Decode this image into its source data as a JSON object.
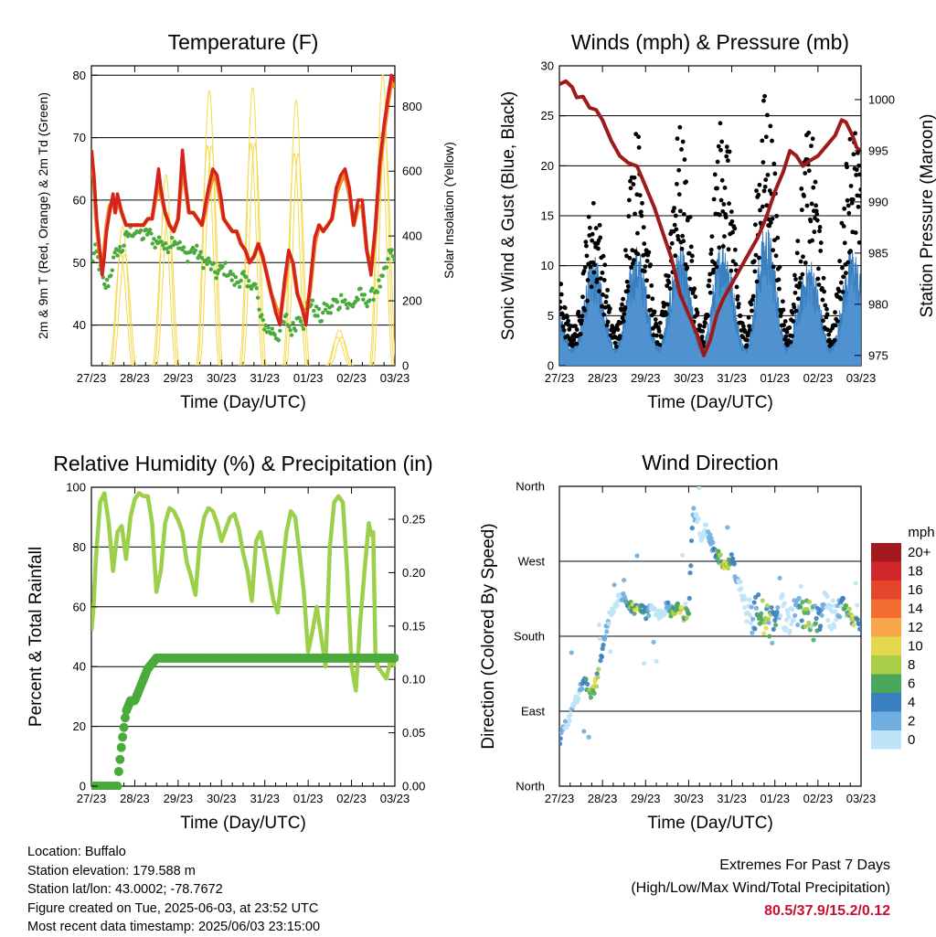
{
  "x_ticks": [
    "27/23",
    "28/23",
    "29/23",
    "30/23",
    "31/23",
    "01/23",
    "02/23",
    "03/23"
  ],
  "chart_data": [
    {
      "id": "temperature",
      "type": "line",
      "title": "Temperature (F)",
      "xlabel": "Time (Day/UTC)",
      "ylabel": "2m & 9m T (Red, Orange) & 2m Td (Green)",
      "ylabel_right": "Solar Insolation (Yellow)",
      "x_range_days": [
        0,
        7
      ],
      "ylim": [
        33.5,
        81.5
      ],
      "ylim_right": [
        0,
        925
      ],
      "yticks": [
        40,
        50,
        60,
        70,
        80
      ],
      "yticks_right": [
        0,
        200,
        400,
        600,
        800
      ],
      "grid_y": [
        40,
        50,
        60,
        70,
        80
      ],
      "series": [
        {
          "key": "t2m",
          "color": "#d4221c",
          "x": [
            0,
            0.06,
            0.12,
            0.18,
            0.25,
            0.3,
            0.35,
            0.42,
            0.5,
            0.55,
            0.6,
            0.7,
            0.8,
            0.9,
            1.0,
            1.1,
            1.2,
            1.3,
            1.4,
            1.5,
            1.55,
            1.6,
            1.7,
            1.8,
            1.9,
            2.0,
            2.05,
            2.1,
            2.15,
            2.25,
            2.35,
            2.45,
            2.55,
            2.62,
            2.7,
            2.8,
            2.9,
            3.0,
            3.05,
            3.15,
            3.25,
            3.35,
            3.45,
            3.55,
            3.65,
            3.75,
            3.85,
            3.95,
            4.05,
            4.15,
            4.25,
            4.35,
            4.45,
            4.55,
            4.65,
            4.75,
            4.85,
            4.95,
            5.05,
            5.15,
            5.25,
            5.35,
            5.45,
            5.55,
            5.65,
            5.75,
            5.85,
            5.95,
            6.05,
            6.15,
            6.25,
            6.35,
            6.45,
            6.55,
            6.65,
            6.75,
            6.85,
            6.92,
            7.0
          ],
          "y": [
            68,
            64,
            57,
            53,
            48,
            51,
            55,
            58,
            61,
            58,
            61,
            58,
            56,
            56,
            56,
            56,
            56,
            57,
            57,
            62,
            65,
            62,
            58,
            56,
            55,
            57,
            62,
            68,
            64,
            58,
            58,
            57,
            56,
            59,
            62,
            65,
            64,
            60,
            57,
            56,
            55,
            55,
            53,
            52,
            50,
            51,
            53,
            51,
            48,
            45,
            42,
            40,
            47,
            52,
            50,
            45,
            43,
            40,
            47,
            54,
            56,
            55,
            56,
            57,
            62,
            64,
            65,
            62,
            56,
            60,
            60,
            52,
            48,
            56,
            66,
            72,
            77,
            80,
            79
          ]
        },
        {
          "key": "t9m",
          "color": "#f08a24",
          "x": [
            0,
            0.06,
            0.12,
            0.18,
            0.25,
            0.3,
            0.35,
            0.42,
            0.5,
            0.55,
            0.6,
            0.7,
            0.8,
            0.9,
            1.0,
            1.1,
            1.2,
            1.3,
            1.4,
            1.5,
            1.55,
            1.6,
            1.7,
            1.8,
            1.9,
            2.0,
            2.05,
            2.1,
            2.15,
            2.25,
            2.35,
            2.45,
            2.55,
            2.62,
            2.7,
            2.8,
            2.9,
            3.0,
            3.05,
            3.15,
            3.25,
            3.35,
            3.45,
            3.55,
            3.65,
            3.75,
            3.85,
            3.95,
            4.05,
            4.15,
            4.25,
            4.35,
            4.45,
            4.55,
            4.65,
            4.75,
            4.85,
            4.95,
            5.05,
            5.15,
            5.25,
            5.35,
            5.45,
            5.55,
            5.65,
            5.75,
            5.85,
            5.95,
            6.05,
            6.15,
            6.25,
            6.35,
            6.45,
            6.55,
            6.65,
            6.75,
            6.85,
            6.92,
            7.0
          ],
          "y": [
            68,
            63,
            56,
            52,
            49,
            52,
            56,
            59,
            60,
            58,
            60,
            58,
            56,
            56,
            56,
            56,
            56,
            57,
            57,
            61,
            64,
            61,
            58,
            56,
            55,
            57,
            61,
            67,
            63,
            58,
            58,
            57,
            56,
            58,
            61,
            64,
            63,
            59,
            57,
            56,
            55,
            55,
            53,
            52,
            50,
            51,
            53,
            51,
            48,
            45,
            43,
            41,
            46,
            51,
            50,
            45,
            43,
            41,
            46,
            53,
            56,
            55,
            56,
            57,
            61,
            63,
            64,
            61,
            56,
            59,
            59,
            52,
            49,
            55,
            65,
            71,
            76,
            79,
            78
          ]
        },
        {
          "key": "td2m",
          "color": "#4aaa3c",
          "x": [
            0,
            0.1,
            0.2,
            0.3,
            0.4,
            0.5,
            0.6,
            0.7,
            0.8,
            0.9,
            1.0,
            1.1,
            1.2,
            1.3,
            1.4,
            1.5,
            1.6,
            1.7,
            1.8,
            1.9,
            2.0,
            2.1,
            2.2,
            2.3,
            2.4,
            2.5,
            2.6,
            2.7,
            2.8,
            2.9,
            3.0,
            3.1,
            3.2,
            3.3,
            3.4,
            3.5,
            3.6,
            3.7,
            3.8,
            3.9,
            4.0,
            4.1,
            4.2,
            4.3,
            4.4,
            4.5,
            4.6,
            4.7,
            4.8,
            4.9,
            5.0,
            5.1,
            5.2,
            5.3,
            5.4,
            5.5,
            5.6,
            5.7,
            5.8,
            5.9,
            6.0,
            6.1,
            6.2,
            6.3,
            6.4,
            6.5,
            6.6,
            6.7,
            6.8,
            6.9,
            7.0
          ],
          "y": [
            50,
            52,
            49,
            46,
            47,
            50,
            52,
            52,
            54,
            55,
            55,
            55,
            54,
            55,
            54,
            53,
            54,
            52,
            53,
            54,
            53,
            52,
            51,
            52,
            52,
            51,
            50,
            50,
            49,
            48,
            49,
            49,
            48,
            47,
            47,
            48,
            46,
            47,
            46,
            41,
            40,
            39,
            39,
            38,
            40,
            41,
            39,
            40,
            42,
            40,
            44,
            43,
            42,
            41,
            43,
            42,
            44,
            43,
            45,
            43,
            43,
            44,
            45,
            44,
            44,
            45,
            46,
            47,
            49,
            52,
            50
          ]
        }
      ],
      "solar": {
        "color": "#f6d94a",
        "peaks_w_m2": [
          430,
          590,
          850,
          860,
          820,
          110,
          900,
          880
        ]
      }
    },
    {
      "id": "winds",
      "type": "scatter",
      "title": "Winds (mph) & Pressure (mb)",
      "xlabel": "Time (Day/UTC)",
      "ylabel": "Sonic Wind & Gust (Blue, Black)",
      "ylabel_right": "Station Pressure (Maroon)",
      "x_range_days": [
        0,
        7
      ],
      "ylim": [
        0,
        30
      ],
      "ylim_right": [
        974,
        1003.3
      ],
      "yticks": [
        0,
        5,
        10,
        15,
        20,
        25,
        30
      ],
      "yticks_right": [
        975,
        980,
        985,
        990,
        995,
        1000
      ],
      "grid_y": [
        5,
        10,
        15,
        20,
        25,
        30
      ],
      "gust_peaks_mph": [
        12,
        17,
        24,
        24,
        26,
        28,
        24,
        25,
        25
      ],
      "wind_peaks_mph": [
        7,
        10,
        11,
        11,
        12,
        13,
        10,
        11,
        11
      ],
      "pressure": {
        "color": "#9e1b1b",
        "x": [
          0,
          0.15,
          0.3,
          0.4,
          0.55,
          0.7,
          0.85,
          1.0,
          1.2,
          1.4,
          1.6,
          1.8,
          2.0,
          2.2,
          2.4,
          2.6,
          2.8,
          3.0,
          3.2,
          3.35,
          3.5,
          3.65,
          3.8,
          4.0,
          4.2,
          4.4,
          4.6,
          4.8,
          5.0,
          5.2,
          5.35,
          5.5,
          5.65,
          5.8,
          6.0,
          6.2,
          6.4,
          6.55,
          6.65,
          6.8,
          6.9,
          7.0
        ],
        "y": [
          1001.5,
          1001.8,
          1001.2,
          1000.2,
          1000.3,
          999.2,
          999,
          998,
          996,
          994.5,
          993.8,
          993.5,
          991.5,
          989.5,
          987,
          984.5,
          981,
          979,
          977,
          975,
          976.5,
          979,
          980.5,
          982,
          983.5,
          985,
          986.5,
          988.5,
          991,
          993,
          995,
          994.5,
          993.5,
          994,
          994.5,
          995.5,
          996.5,
          998,
          997.8,
          996.5,
          995.3,
          995
        ]
      }
    },
    {
      "id": "humidity",
      "type": "line",
      "title": "Relative Humidity (%) & Precipitation (in)",
      "xlabel": "Time (Day/UTC)",
      "ylabel": "Percent & Total Rainfall",
      "x_range_days": [
        0,
        7
      ],
      "ylim": [
        0,
        100
      ],
      "ylim_right": [
        0,
        0.28
      ],
      "yticks": [
        0,
        20,
        40,
        60,
        80,
        100
      ],
      "yticks_right": [
        "0.00",
        "0.05",
        "0.10",
        "0.15",
        "0.20",
        "0.25"
      ],
      "grid_y": [
        20,
        40,
        60,
        80
      ],
      "series": [
        {
          "key": "rh",
          "color": "#9ccf4a",
          "x": [
            0,
            0.05,
            0.1,
            0.2,
            0.3,
            0.4,
            0.45,
            0.5,
            0.6,
            0.7,
            0.8,
            0.9,
            1.0,
            1.1,
            1.2,
            1.3,
            1.4,
            1.5,
            1.6,
            1.7,
            1.8,
            1.9,
            2.0,
            2.1,
            2.2,
            2.3,
            2.4,
            2.5,
            2.6,
            2.7,
            2.8,
            2.9,
            3.0,
            3.1,
            3.2,
            3.3,
            3.4,
            3.5,
            3.6,
            3.7,
            3.8,
            3.9,
            4.0,
            4.1,
            4.2,
            4.3,
            4.4,
            4.5,
            4.6,
            4.7,
            4.8,
            4.9,
            5.0,
            5.1,
            5.2,
            5.3,
            5.4,
            5.5,
            5.6,
            5.7,
            5.8,
            5.9,
            6.0,
            6.1,
            6.2,
            6.3,
            6.4,
            6.45,
            6.5,
            6.55,
            6.6,
            6.7,
            6.8,
            6.9,
            7.0
          ],
          "y": [
            52,
            60,
            75,
            95,
            98,
            88,
            80,
            72,
            85,
            87,
            76,
            90,
            96,
            98,
            97,
            97,
            88,
            65,
            72,
            88,
            93,
            92,
            89,
            85,
            75,
            70,
            64,
            82,
            90,
            93,
            92,
            88,
            82,
            86,
            90,
            91,
            86,
            78,
            72,
            62,
            82,
            85,
            78,
            70,
            62,
            58,
            72,
            85,
            92,
            90,
            78,
            65,
            45,
            52,
            60,
            50,
            40,
            80,
            95,
            97,
            95,
            72,
            40,
            32,
            55,
            72,
            88,
            84,
            85,
            45,
            40,
            38,
            36,
            42,
            40
          ]
        },
        {
          "key": "precip",
          "color": "#4aaa3c",
          "x": [
            0,
            0.5,
            0.6,
            0.62,
            0.7,
            0.8,
            0.9,
            1.0,
            1.1,
            1.2,
            1.3,
            1.4,
            1.5,
            7.0
          ],
          "y": [
            0,
            0,
            0,
            0.01,
            0.04,
            0.07,
            0.08,
            0.08,
            0.09,
            0.1,
            0.11,
            0.115,
            0.12,
            0.12
          ]
        }
      ]
    },
    {
      "id": "direction",
      "type": "scatter",
      "title": "Wind Direction",
      "xlabel": "Time (Day/UTC)",
      "ylabel": "Direction (Colored By Speed)",
      "x_range_days": [
        0,
        7
      ],
      "ylim": [
        0,
        360
      ],
      "yticks": [
        "North",
        "East",
        "South",
        "West",
        "North"
      ],
      "grid_y": [
        90,
        180,
        270
      ],
      "legend": {
        "title": "mph",
        "labels": [
          "20+",
          "18",
          "16",
          "14",
          "12",
          "10",
          "8",
          "6",
          "4",
          "2",
          "0"
        ],
        "colors": [
          "#a31a1e",
          "#d0282a",
          "#e3462b",
          "#f26d2f",
          "#f8a84a",
          "#e6d84e",
          "#a9cf48",
          "#4aa85c",
          "#3a7fc0",
          "#6eaee0",
          "#bfe3f7"
        ]
      },
      "track_x": [
        0,
        0.1,
        0.2,
        0.3,
        0.4,
        0.5,
        0.6,
        0.7,
        0.8,
        0.9,
        1.0,
        1.1,
        1.2,
        1.3,
        1.4,
        1.5,
        1.6,
        1.7,
        1.8,
        1.9,
        2.0,
        2.1,
        2.2,
        2.3,
        2.4,
        2.5,
        2.6,
        2.7,
        2.8,
        2.9,
        3.0,
        3.1,
        3.2,
        3.3,
        3.4,
        3.5,
        3.6,
        3.7,
        3.8,
        3.9,
        4.0,
        4.1,
        4.2,
        4.3,
        4.4,
        4.5,
        4.6,
        4.7,
        4.8,
        4.9,
        5.0,
        5.1,
        5.2,
        5.3,
        5.4,
        5.5,
        5.6,
        5.7,
        5.8,
        5.9,
        6.0,
        6.1,
        6.2,
        6.3,
        6.4,
        6.5,
        6.6,
        6.7,
        6.8,
        6.9,
        7.0
      ],
      "track_deg": [
        55,
        70,
        80,
        95,
        105,
        120,
        125,
        110,
        115,
        135,
        165,
        190,
        210,
        220,
        225,
        230,
        220,
        215,
        210,
        215,
        208,
        210,
        212,
        205,
        210,
        215,
        210,
        212,
        215,
        205,
        210,
        330,
        320,
        300,
        310,
        295,
        280,
        275,
        265,
        260,
        280,
        250,
        240,
        220,
        210,
        200,
        215,
        205,
        200,
        195,
        205,
        215,
        210,
        200,
        210,
        215,
        200,
        205,
        210,
        195,
        205,
        210,
        215,
        205,
        210,
        220,
        215,
        210,
        200,
        195,
        195
      ]
    }
  ],
  "info": {
    "location": "Location: Buffalo",
    "elevation": "Station elevation: 179.588 m",
    "latlon": "Station lat/lon: 43.0002; -78.7672",
    "created": "Figure created on Tue, 2025-06-03, at 23:52 UTC",
    "recent": "Most recent data timestamp: 2025/06/03 23:15:00"
  },
  "extremes": {
    "title": "Extremes For Past 7 Days",
    "subtitle": "(High/Low/Max Wind/Total Precipitation)",
    "values": "80.5/37.9/15.2/0.12"
  }
}
